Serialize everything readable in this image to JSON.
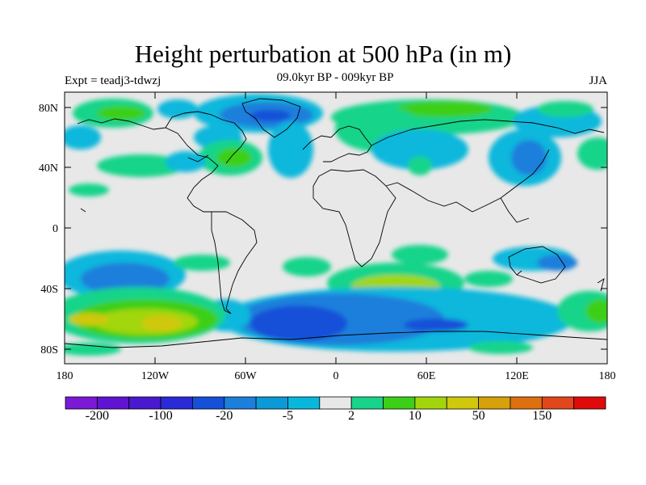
{
  "title": "Height perturbation at 500 hPa (in m)",
  "subtitle": "09.0kyr BP - 009kyr BP",
  "left_label": "Expt = teadj3-tdwzj",
  "right_label": "JJA",
  "axes": {
    "lat_ticks": [
      "80N",
      "40N",
      "0",
      "40S",
      "80S"
    ],
    "lon_ticks": [
      "180",
      "120W",
      "60W",
      "0",
      "60E",
      "120E",
      "180"
    ]
  },
  "colorbar": {
    "colors": [
      "#7a1ad6",
      "#6014d2",
      "#4a18cf",
      "#2a2ad8",
      "#1450d8",
      "#1b7fdb",
      "#0a9ad8",
      "#08b8dc",
      "#e8e8e8",
      "#18d48a",
      "#3ccf18",
      "#a2d60c",
      "#cfc80c",
      "#d6a10a",
      "#de7010",
      "#e2461c",
      "#e00a0a"
    ],
    "labels": [
      "-200",
      "-100",
      "-20",
      "-5",
      "2",
      "10",
      "50",
      "150"
    ]
  },
  "chart_data": {
    "type": "heatmap",
    "variable": "Height perturbation at 500 hPa",
    "units": "m",
    "season": "JJA",
    "color_levels": [
      -200,
      -100,
      -20,
      -5,
      2,
      10,
      50,
      150
    ],
    "xlim": [
      -180,
      180
    ],
    "ylim": [
      -90,
      90
    ]
  }
}
